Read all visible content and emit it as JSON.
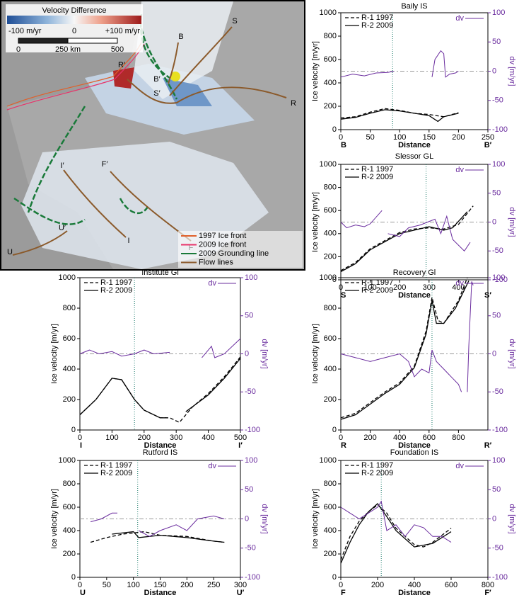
{
  "map": {
    "colorbar_title": "Velocity Difference",
    "colorbar_ticks": [
      "-100 m/yr",
      "0",
      "+100 m/yr"
    ],
    "scale_ticks": [
      "0",
      "250 km",
      "500"
    ],
    "flow_line_labels": [
      "B",
      "S",
      "R",
      "R′",
      "B′",
      "S′",
      "I′",
      "F′",
      "U′",
      "I",
      "F",
      "U"
    ],
    "legend": [
      {
        "label": "1997 Ice front",
        "color": "#e0602a"
      },
      {
        "label": "2009 Ice front",
        "color": "#e8336a"
      },
      {
        "label": "2009 Grounding line",
        "color": "#1a7a3a"
      },
      {
        "label": "Flow lines",
        "color": "#8b5a2b"
      }
    ]
  },
  "chart_data": [
    {
      "type": "line",
      "title": "Baily IS",
      "xlabel": "Distance",
      "ylabel": "Ice velocity [m/yr]",
      "y2label": "dv [m/yr]",
      "start_label": "B",
      "end_label": "B′",
      "xlim": [
        0,
        250
      ],
      "xticks": [
        0,
        50,
        100,
        150,
        200,
        250
      ],
      "ylim": [
        0,
        1000
      ],
      "yticks": [
        0,
        200,
        400,
        600,
        800,
        1000
      ],
      "y2lim": [
        -100,
        100
      ],
      "y2ticks": [
        -100,
        -50,
        0,
        50,
        100
      ],
      "y2_refline": 0,
      "vline": 88,
      "series": [
        {
          "name": "R-1 1997",
          "color": "#000000",
          "dash": true,
          "x": [
            0,
            25,
            50,
            75,
            100,
            125,
            150,
            175,
            200
          ],
          "values": [
            100,
            110,
            150,
            180,
            165,
            140,
            130,
            110,
            145
          ]
        },
        {
          "name": "R-2 2009",
          "color": "#000000",
          "dash": false,
          "x": [
            0,
            25,
            50,
            75,
            100,
            125,
            150,
            165,
            175,
            200
          ],
          "values": [
            90,
            105,
            140,
            170,
            160,
            140,
            120,
            70,
            110,
            140
          ]
        },
        {
          "name": "dv",
          "color": "#6a2c9e",
          "dash": false,
          "axis": "y2",
          "x": [
            0,
            20,
            40,
            60,
            80,
            90,
            null,
            155,
            160,
            170,
            175,
            178,
            185,
            195,
            200
          ],
          "values": [
            -10,
            -5,
            -8,
            -3,
            -2,
            0,
            null,
            -10,
            20,
            35,
            30,
            -10,
            -5,
            -3,
            0
          ]
        }
      ]
    },
    {
      "type": "line",
      "title": "Slessor GL",
      "xlabel": "Distance",
      "ylabel": "Ice velocity [m/yr]",
      "y2label": "dv [m/yr]",
      "start_label": "S",
      "end_label": "S′",
      "xlim": [
        0,
        500
      ],
      "xticks": [
        0,
        100,
        200,
        300,
        400
      ],
      "ylim": [
        0,
        1000
      ],
      "yticks": [
        0,
        200,
        400,
        600,
        800,
        1000
      ],
      "y2lim": [
        -100,
        100
      ],
      "y2ticks": [
        -100,
        -50,
        0,
        50,
        100
      ],
      "y2_refline": 0,
      "vline": 290,
      "series": [
        {
          "name": "R-1 1997",
          "color": "#000000",
          "dash": true,
          "x": [
            0,
            50,
            100,
            150,
            200,
            250,
            300,
            350,
            400,
            450
          ],
          "values": [
            80,
            150,
            270,
            340,
            410,
            440,
            450,
            440,
            480,
            640
          ]
        },
        {
          "name": "R-2 2009",
          "color": "#000000",
          "dash": false,
          "x": [
            0,
            50,
            100,
            150,
            200,
            250,
            300,
            350,
            380,
            430
          ],
          "values": [
            70,
            140,
            260,
            330,
            400,
            430,
            460,
            430,
            450,
            590
          ]
        },
        {
          "name": "dv",
          "color": "#6a2c9e",
          "dash": false,
          "axis": "y2",
          "x": [
            0,
            20,
            50,
            80,
            100,
            140,
            null,
            160,
            200,
            230,
            270,
            320,
            340,
            360,
            380,
            400,
            420,
            440
          ],
          "values": [
            0,
            -10,
            -5,
            -8,
            -3,
            20,
            null,
            -20,
            -25,
            -10,
            -5,
            5,
            -20,
            10,
            -30,
            -40,
            -50,
            -35
          ]
        }
      ]
    },
    {
      "type": "line",
      "title": "Institute Gl",
      "xlabel": "Distance",
      "ylabel": "Ice velocity [m/yr]",
      "y2label": "dv [m/yr]",
      "start_label": "I",
      "end_label": "I′",
      "xlim": [
        0,
        500
      ],
      "xticks": [
        0,
        100,
        200,
        300,
        400,
        500
      ],
      "ylim": [
        0,
        1000
      ],
      "yticks": [
        0,
        200,
        400,
        600,
        800,
        1000
      ],
      "y2lim": [
        -100,
        100
      ],
      "y2ticks": [
        -100,
        -50,
        0,
        50,
        100
      ],
      "y2_refline": 0,
      "vline": 170,
      "series": [
        {
          "name": "R-1 1997",
          "color": "#000000",
          "dash": true,
          "x": [
            0,
            50,
            100,
            130,
            170,
            200,
            250,
            280,
            310,
            350,
            400,
            450,
            500
          ],
          "values": [
            100,
            200,
            340,
            330,
            200,
            130,
            80,
            80,
            50,
            150,
            240,
            350,
            480
          ]
        },
        {
          "name": "R-2 2009",
          "color": "#000000",
          "dash": false,
          "x": [
            0,
            50,
            100,
            130,
            170,
            200,
            250,
            270,
            null,
            330,
            400,
            450,
            500
          ],
          "values": [
            100,
            200,
            340,
            330,
            200,
            130,
            80,
            80,
            null,
            120,
            230,
            340,
            470
          ]
        },
        {
          "name": "dv",
          "color": "#6a2c9e",
          "dash": false,
          "axis": "y2",
          "x": [
            0,
            30,
            60,
            100,
            130,
            170,
            200,
            230,
            280,
            null,
            380,
            410,
            420,
            450,
            500
          ],
          "values": [
            0,
            5,
            0,
            3,
            -3,
            0,
            5,
            0,
            2,
            null,
            -5,
            10,
            -5,
            0,
            20
          ]
        }
      ]
    },
    {
      "type": "line",
      "title": "Recovery Gl",
      "xlabel": "Distance",
      "ylabel": "Ice velocity [m/yr]",
      "y2label": "dv [m/yr]",
      "start_label": "R",
      "end_label": "R′",
      "xlim": [
        0,
        1000
      ],
      "xticks": [
        0,
        200,
        400,
        600,
        800
      ],
      "ylim": [
        0,
        1000
      ],
      "yticks": [
        0,
        200,
        400,
        600,
        800,
        1000
      ],
      "y2lim": [
        -100,
        100
      ],
      "y2ticks": [
        -100,
        -50,
        0,
        50,
        100
      ],
      "y2_refline": 0,
      "vline": 620,
      "series": [
        {
          "name": "R-1 1997",
          "color": "#000000",
          "dash": true,
          "x": [
            0,
            100,
            200,
            300,
            400,
            500,
            580,
            620,
            660,
            700,
            800,
            860
          ],
          "values": [
            80,
            110,
            180,
            250,
            310,
            420,
            650,
            870,
            720,
            700,
            850,
            1000
          ]
        },
        {
          "name": "R-2 2009",
          "color": "#000000",
          "dash": false,
          "x": [
            0,
            100,
            200,
            300,
            400,
            500,
            580,
            620,
            650,
            700,
            780,
            870
          ],
          "values": [
            70,
            100,
            170,
            240,
            300,
            410,
            630,
            850,
            700,
            700,
            800,
            980
          ]
        },
        {
          "name": "dv",
          "color": "#6a2c9e",
          "dash": false,
          "axis": "y2",
          "x": [
            0,
            100,
            200,
            300,
            400,
            460,
            500,
            550,
            600,
            620,
            650,
            700,
            750,
            800,
            820,
            null,
            860,
            870,
            890,
            900
          ],
          "values": [
            0,
            -5,
            -10,
            -5,
            0,
            -10,
            -30,
            -20,
            -25,
            5,
            -10,
            -20,
            -30,
            -40,
            -50,
            null,
            -50,
            10,
            95,
            90
          ]
        }
      ]
    },
    {
      "type": "line",
      "title": "Rutford IS",
      "xlabel": "Distance",
      "ylabel": "Ice velocity [m/yr]",
      "y2label": "dv [m/yr]",
      "start_label": "U",
      "end_label": "U′",
      "xlim": [
        0,
        300
      ],
      "xticks": [
        0,
        50,
        100,
        150,
        200,
        250,
        300
      ],
      "ylim": [
        0,
        1000
      ],
      "yticks": [
        0,
        200,
        400,
        600,
        800,
        1000
      ],
      "y2lim": [
        -100,
        100
      ],
      "y2ticks": [
        -100,
        -50,
        0,
        50,
        100
      ],
      "y2_refline": 0,
      "vline": 108,
      "series": [
        {
          "name": "R-1 1997",
          "color": "#000000",
          "dash": true,
          "x": [
            20,
            50,
            80,
            100,
            120,
            150,
            200,
            250,
            270
          ],
          "values": [
            300,
            340,
            370,
            380,
            390,
            360,
            350,
            310,
            300
          ]
        },
        {
          "name": "R-2 2009",
          "color": "#000000",
          "dash": false,
          "x": [
            60,
            100,
            110,
            150,
            200,
            250,
            270
          ],
          "values": [
            370,
            390,
            340,
            360,
            340,
            310,
            300
          ]
        },
        {
          "name": "dv",
          "color": "#6a2c9e",
          "dash": false,
          "axis": "y2",
          "x": [
            20,
            40,
            60,
            70,
            null,
            110,
            130,
            150,
            180,
            200,
            220,
            250,
            270
          ],
          "values": [
            -5,
            0,
            10,
            10,
            null,
            -20,
            -30,
            -20,
            -10,
            -20,
            0,
            5,
            0
          ]
        }
      ]
    },
    {
      "type": "line",
      "title": "Foundation IS",
      "xlabel": "Distance",
      "ylabel": "Ice velocity [m/yr]",
      "y2label": "dv [m/yr]",
      "start_label": "F",
      "end_label": "F′",
      "xlim": [
        0,
        800
      ],
      "xticks": [
        0,
        200,
        400,
        600,
        800
      ],
      "ylim": [
        0,
        1000
      ],
      "yticks": [
        0,
        200,
        400,
        600,
        800,
        1000
      ],
      "y2lim": [
        -100,
        100
      ],
      "y2ticks": [
        -100,
        -50,
        0,
        50,
        100
      ],
      "y2_refline": 0,
      "vline": 220,
      "series": [
        {
          "name": "R-1 1997",
          "color": "#000000",
          "dash": true,
          "x": [
            0,
            50,
            100,
            150,
            200,
            250,
            300,
            400,
            450,
            500,
            600
          ],
          "values": [
            150,
            350,
            480,
            560,
            620,
            550,
            420,
            280,
            260,
            300,
            420
          ]
        },
        {
          "name": "R-2 2009",
          "color": "#000000",
          "dash": false,
          "x": [
            0,
            50,
            100,
            150,
            200,
            250,
            300,
            400,
            500,
            600
          ],
          "values": [
            120,
            300,
            450,
            560,
            630,
            520,
            400,
            260,
            290,
            390
          ]
        },
        {
          "name": "dv",
          "color": "#6a2c9e",
          "dash": false,
          "axis": "y2",
          "x": [
            0,
            50,
            100,
            150,
            200,
            220,
            250,
            300,
            350,
            400,
            450,
            500,
            550,
            600
          ],
          "values": [
            20,
            10,
            0,
            10,
            20,
            30,
            -20,
            -10,
            -30,
            -10,
            -15,
            -30,
            -30,
            -40
          ]
        }
      ]
    }
  ]
}
